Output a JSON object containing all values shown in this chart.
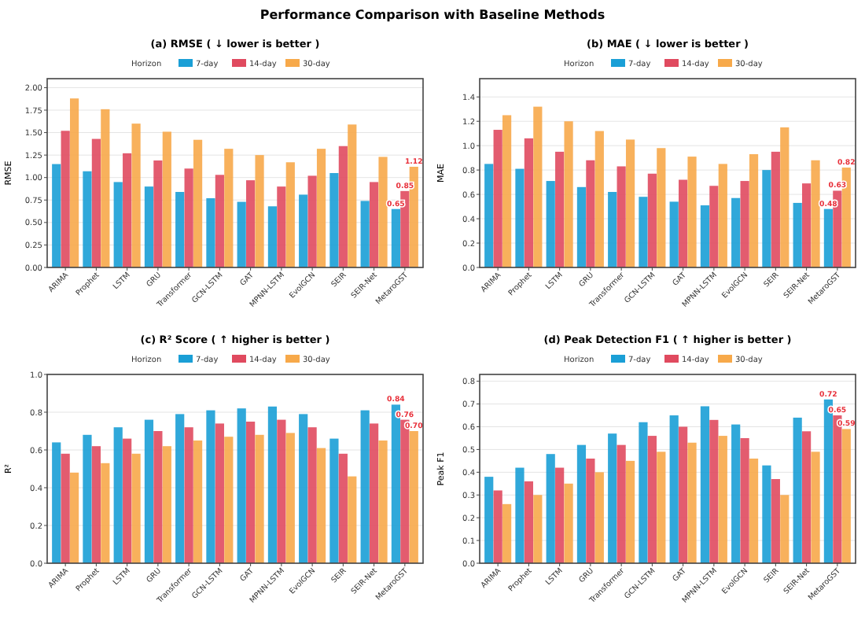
{
  "chart_data": [
    {
      "type": "bar",
      "title": "(a) RMSE  ( ↓ lower is better )",
      "ylabel": "RMSE",
      "legend_title": "Horizon",
      "legend": "top",
      "grid": "y",
      "categories": [
        "ARIMA",
        "Prophet",
        "LSTM",
        "GRU",
        "Transformer",
        "GCN-LSTM",
        "GAT",
        "MPNN-LSTM",
        "EvolGCN",
        "SEIR",
        "SEIR-Net",
        "MetaroGST"
      ],
      "ylim": [
        0,
        2.1
      ],
      "yticks": [
        {
          "value": 0,
          "label": "0.00"
        },
        0.25,
        {
          "value": 0.5,
          "label": "0.50"
        },
        0.75,
        {
          "value": 1,
          "label": "1.00"
        },
        1.25,
        {
          "value": 1.5,
          "label": "1.50"
        },
        1.75,
        {
          "value": 2,
          "label": "2.00"
        }
      ],
      "series": [
        {
          "name": "7-day",
          "color": "#1a9fd6",
          "values": [
            1.15,
            1.07,
            0.95,
            0.9,
            0.84,
            0.77,
            0.73,
            0.68,
            0.81,
            1.05,
            0.74,
            0.65
          ],
          "value_labels": [
            null,
            null,
            null,
            null,
            null,
            null,
            null,
            null,
            null,
            null,
            null,
            "0.65"
          ]
        },
        {
          "name": "14-day",
          "color": "#e04a5f",
          "values": [
            1.52,
            1.43,
            1.27,
            1.19,
            1.1,
            1.03,
            0.97,
            0.9,
            1.02,
            1.35,
            0.95,
            0.85
          ],
          "value_labels": [
            null,
            null,
            null,
            null,
            null,
            null,
            null,
            null,
            null,
            null,
            null,
            "0.85"
          ]
        },
        {
          "name": "30-day",
          "color": "#f7a94a",
          "values": [
            1.88,
            1.76,
            1.6,
            1.51,
            1.42,
            1.32,
            1.25,
            1.17,
            1.32,
            1.59,
            1.23,
            1.12
          ],
          "value_labels": [
            null,
            null,
            null,
            null,
            null,
            null,
            null,
            null,
            null,
            null,
            null,
            "1.12"
          ]
        }
      ],
      "annotations": [
        "Performance Comparison with Baseline Methods"
      ]
    },
    {
      "type": "bar",
      "title": "(b) MAE  ( ↓ lower is better )",
      "ylabel": "MAE",
      "legend_title": "Horizon",
      "legend": "top",
      "grid": "y",
      "categories": [
        "ARIMA",
        "Prophet",
        "LSTM",
        "GRU",
        "Transformer",
        "GCN-LSTM",
        "GAT",
        "MPNN-LSTM",
        "EvolGCN",
        "SEIR",
        "SEIR-Net",
        "MetaroGST"
      ],
      "ylim": [
        0,
        1.55
      ],
      "yticks": [
        {
          "value": 0,
          "label": "0.0"
        },
        {
          "value": 0.2,
          "label": "0.2"
        },
        {
          "value": 0.4,
          "label": "0.4"
        },
        {
          "value": 0.6,
          "label": "0.6"
        },
        {
          "value": 0.8,
          "label": "0.8"
        },
        {
          "value": 1,
          "label": "1.0"
        },
        {
          "value": 1.2,
          "label": "1.2"
        },
        {
          "value": 1.4,
          "label": "1.4"
        }
      ],
      "series": [
        {
          "name": "7-day",
          "color": "#1a9fd6",
          "values": [
            0.85,
            0.81,
            0.71,
            0.66,
            0.62,
            0.58,
            0.54,
            0.51,
            0.57,
            0.8,
            0.53,
            0.48
          ],
          "value_labels": [
            null,
            null,
            null,
            null,
            null,
            null,
            null,
            null,
            null,
            null,
            null,
            "0.48"
          ]
        },
        {
          "name": "14-day",
          "color": "#e04a5f",
          "values": [
            1.13,
            1.06,
            0.95,
            0.88,
            0.83,
            0.77,
            0.72,
            0.67,
            0.71,
            0.95,
            0.69,
            0.63
          ],
          "value_labels": [
            null,
            null,
            null,
            null,
            null,
            null,
            null,
            null,
            null,
            null,
            null,
            "0.63"
          ]
        },
        {
          "name": "30-day",
          "color": "#f7a94a",
          "values": [
            1.25,
            1.32,
            1.2,
            1.12,
            1.05,
            0.98,
            0.91,
            0.85,
            0.93,
            1.15,
            0.88,
            0.82
          ],
          "value_labels": [
            null,
            null,
            null,
            null,
            null,
            null,
            null,
            null,
            null,
            null,
            null,
            "0.82"
          ]
        }
      ]
    },
    {
      "type": "bar",
      "title": "(c) R² Score  ( ↑ higher is better )",
      "ylabel": "R²",
      "legend_title": "Horizon",
      "legend": "top",
      "grid": "y",
      "categories": [
        "ARIMA",
        "Prophet",
        "LSTM",
        "GRU",
        "Transformer",
        "GCN-LSTM",
        "GAT",
        "MPNN-LSTM",
        "EvolGCN",
        "SEIR",
        "SEIR-Net",
        "MetaroGST"
      ],
      "ylim": [
        0,
        1
      ],
      "yticks": [
        {
          "value": 0,
          "label": "0.0"
        },
        {
          "value": 0.2,
          "label": "0.2"
        },
        {
          "value": 0.4,
          "label": "0.4"
        },
        {
          "value": 0.6,
          "label": "0.6"
        },
        {
          "value": 0.8,
          "label": "0.8"
        },
        {
          "value": 1,
          "label": "1.0"
        }
      ],
      "series": [
        {
          "name": "7-day",
          "color": "#1a9fd6",
          "values": [
            0.64,
            0.68,
            0.72,
            0.76,
            0.79,
            0.81,
            0.82,
            0.83,
            0.79,
            0.66,
            0.81,
            0.84
          ],
          "value_labels": [
            null,
            null,
            null,
            null,
            null,
            null,
            null,
            null,
            null,
            null,
            null,
            "0.84"
          ]
        },
        {
          "name": "14-day",
          "color": "#e04a5f",
          "values": [
            0.58,
            0.62,
            0.66,
            0.7,
            0.72,
            0.74,
            0.75,
            0.76,
            0.72,
            0.58,
            0.74,
            0.76
          ],
          "value_labels": [
            null,
            null,
            null,
            null,
            null,
            null,
            null,
            null,
            null,
            null,
            null,
            "0.76"
          ]
        },
        {
          "name": "30-day",
          "color": "#f7a94a",
          "values": [
            0.48,
            0.53,
            0.58,
            0.62,
            0.65,
            0.67,
            0.68,
            0.69,
            0.61,
            0.46,
            0.65,
            0.7
          ],
          "value_labels": [
            null,
            null,
            null,
            null,
            null,
            null,
            null,
            null,
            null,
            null,
            null,
            "0.70"
          ]
        }
      ]
    },
    {
      "type": "bar",
      "title": "(d) Peak Detection F1  ( ↑ higher is better )",
      "ylabel": "Peak F1",
      "legend_title": "Horizon",
      "legend": "top",
      "grid": "y",
      "categories": [
        "ARIMA",
        "Prophet",
        "LSTM",
        "GRU",
        "Transformer",
        "GCN-LSTM",
        "GAT",
        "MPNN-LSTM",
        "EvolGCN",
        "SEIR",
        "SEIR-Net",
        "MetaroGST"
      ],
      "ylim": [
        0,
        0.83
      ],
      "yticks": [
        {
          "value": 0,
          "label": "0.0"
        },
        0.1,
        0.2,
        0.3,
        0.4,
        0.5,
        0.6,
        0.7,
        0.8
      ],
      "series": [
        {
          "name": "7-day",
          "color": "#1a9fd6",
          "values": [
            0.38,
            0.42,
            0.48,
            0.52,
            0.57,
            0.62,
            0.65,
            0.69,
            0.61,
            0.43,
            0.64,
            0.72
          ],
          "value_labels": [
            null,
            null,
            null,
            null,
            null,
            null,
            null,
            null,
            null,
            null,
            null,
            "0.72"
          ]
        },
        {
          "name": "14-day",
          "color": "#e04a5f",
          "values": [
            0.32,
            0.36,
            0.42,
            0.46,
            0.52,
            0.56,
            0.6,
            0.63,
            0.55,
            0.37,
            0.58,
            0.65
          ],
          "value_labels": [
            null,
            null,
            null,
            null,
            null,
            null,
            null,
            null,
            null,
            null,
            null,
            "0.65"
          ]
        },
        {
          "name": "30-day",
          "color": "#f7a94a",
          "values": [
            0.26,
            0.3,
            0.35,
            0.4,
            0.45,
            0.49,
            0.53,
            0.56,
            0.46,
            0.3,
            0.49,
            0.59
          ],
          "value_labels": [
            null,
            null,
            null,
            null,
            null,
            null,
            null,
            null,
            null,
            null,
            null,
            "0.59"
          ]
        }
      ]
    }
  ]
}
